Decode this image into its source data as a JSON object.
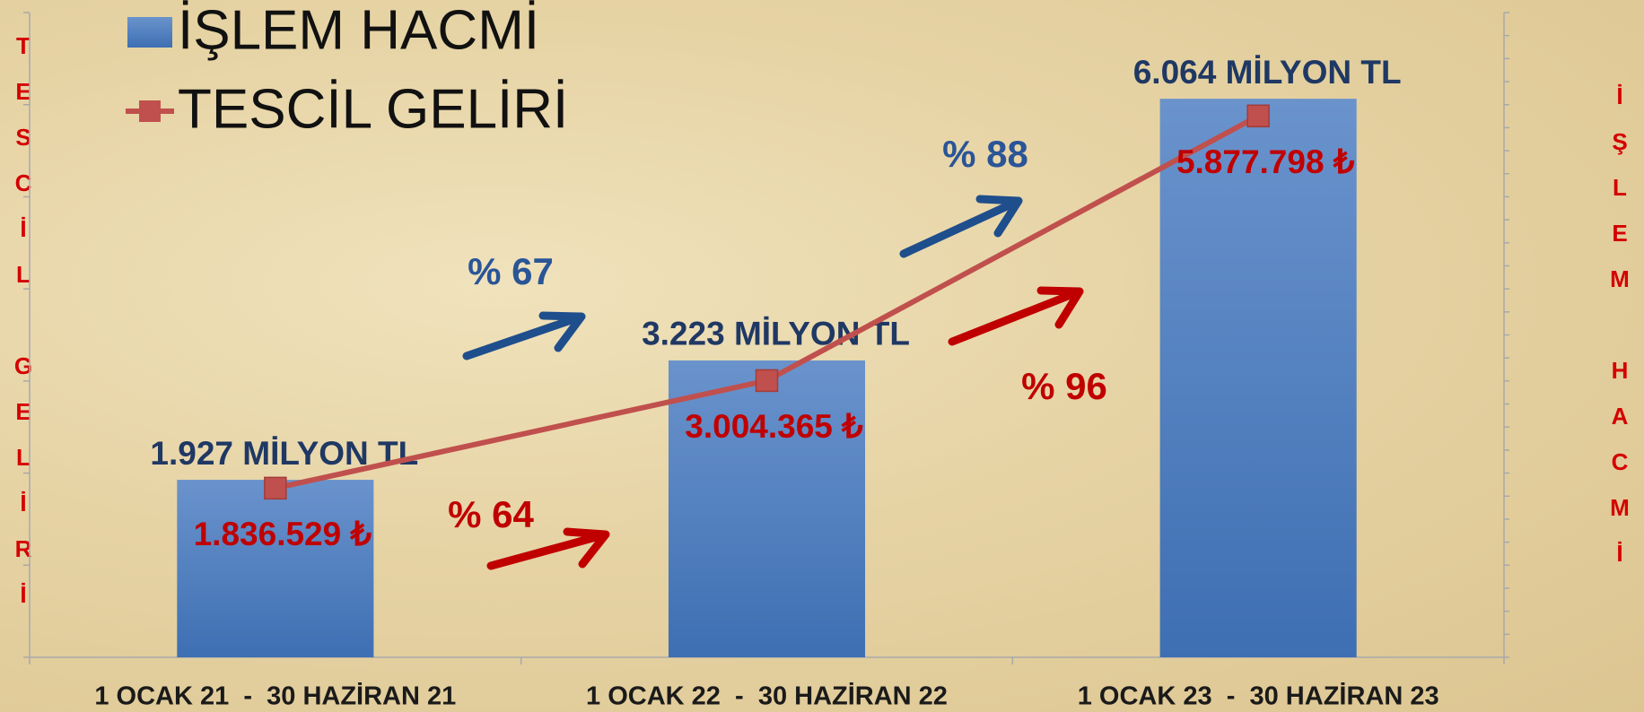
{
  "chart_data": {
    "type": "combo",
    "y_label": "TESCİL GELİRİ",
    "y2_label": "İŞLEM HACMİ",
    "categories": [
      "1 OCAK 21  -  30 HAZİRAN 21",
      "1 OCAK 22  -  30 HAZİRAN 22",
      "1 OCAK 23  -  30 HAZİRAN 23"
    ],
    "series": [
      {
        "name": "İŞLEM HACMİ",
        "type": "bar",
        "axis": "y2",
        "color": "#4f81bd",
        "values": [
          1927,
          3223,
          6064
        ],
        "value_labels": [
          "1.927 MİLYON TL",
          "3.223 MİLYON TL",
          "6.064 MİLYON TL"
        ]
      },
      {
        "name": "TESCİL GELİRİ",
        "type": "line",
        "color": "#c0504d",
        "values": [
          1836529,
          3004365,
          5877798
        ],
        "value_labels": [
          "1.836.529 ₺",
          "3.004.365 ₺",
          "5.877.798 ₺"
        ]
      }
    ],
    "annotations": [
      "% 67",
      "% 88",
      "% 64",
      "% 96"
    ],
    "ylim": [
      0,
      7000000
    ],
    "yticks": [
      0,
      1000000,
      2000000,
      3000000,
      4000000,
      5000000,
      6000000,
      7000000
    ],
    "y2lim": [
      0,
      7000
    ],
    "y2ticks": [
      0,
      250,
      500,
      750,
      1000,
      1250,
      1500,
      1750,
      2000,
      2250,
      2500,
      2750,
      3000,
      3250,
      3500,
      3750,
      4000,
      4250,
      4500,
      4750,
      5000,
      5250,
      5500,
      5750,
      6000,
      6250,
      6500,
      6750,
      7000
    ],
    "legend": "top-left"
  }
}
